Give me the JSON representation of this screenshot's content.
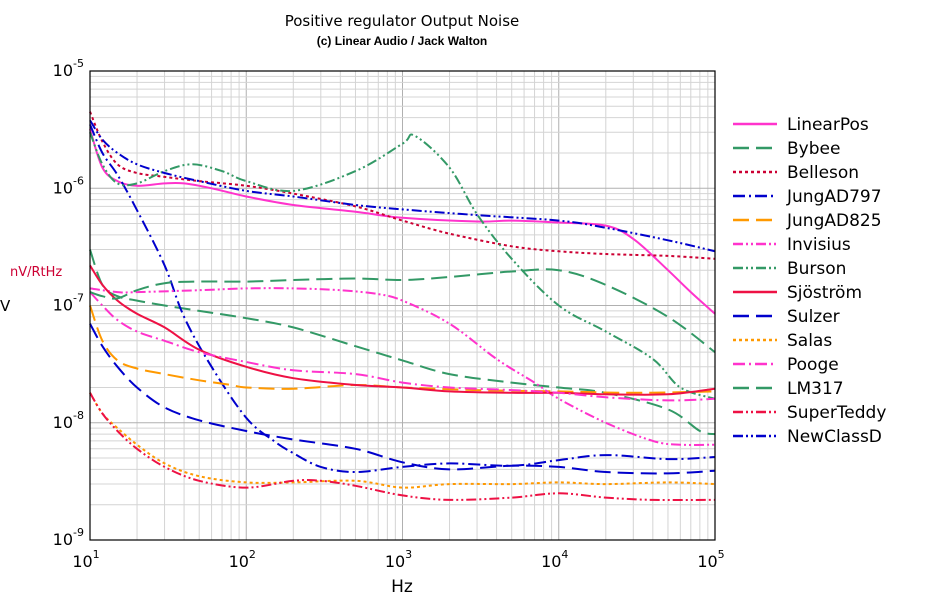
{
  "chart_data": {
    "type": "line",
    "title": "Positive regulator Output Noise",
    "subtitle": "(c) Linear Audio / Jack Walton",
    "xlabel": "Hz",
    "ylabel": "nV/RtHz",
    "ylabel_color": "#cc0033",
    "y_left_char": "V",
    "x_scale": "log",
    "y_scale": "log",
    "xlim": [
      10,
      100000
    ],
    "ylim": [
      1e-09,
      1e-05
    ],
    "x_ticks": [
      {
        "value": 10,
        "base": "10",
        "exp": "1"
      },
      {
        "value": 100,
        "base": "10",
        "exp": "2"
      },
      {
        "value": 1000,
        "base": "10",
        "exp": "3"
      },
      {
        "value": 10000,
        "base": "10",
        "exp": "4"
      },
      {
        "value": 100000,
        "base": "10",
        "exp": "5"
      }
    ],
    "y_ticks": [
      {
        "value": 1e-09,
        "base": "10",
        "exp": "-9"
      },
      {
        "value": 1e-08,
        "base": "10",
        "exp": "-8"
      },
      {
        "value": 1e-07,
        "base": "10",
        "exp": "-7"
      },
      {
        "value": 1e-06,
        "base": "10",
        "exp": "-6"
      },
      {
        "value": 1e-05,
        "base": "10",
        "exp": "-5"
      }
    ],
    "grid": true,
    "legend_position": "right",
    "series": [
      {
        "name": "LinearPos",
        "color": "#ff33cc",
        "dash": "solid",
        "points": [
          [
            10,
            3.2e-06
          ],
          [
            12,
            1.5e-06
          ],
          [
            15,
            1.15e-06
          ],
          [
            20,
            1.05e-06
          ],
          [
            30,
            1.1e-06
          ],
          [
            40,
            1.1e-06
          ],
          [
            60,
            1e-06
          ],
          [
            100,
            8.5e-07
          ],
          [
            200,
            7.2e-07
          ],
          [
            500,
            6.3e-07
          ],
          [
            1000,
            5.6e-07
          ],
          [
            3000,
            5.2e-07
          ],
          [
            5000,
            5.3e-07
          ],
          [
            10000,
            5.1e-07
          ],
          [
            20000,
            4.8e-07
          ],
          [
            30000,
            3.7e-07
          ],
          [
            50000,
            2e-07
          ],
          [
            70000,
            1.3e-07
          ],
          [
            100000,
            8.5e-08
          ]
        ]
      },
      {
        "name": "Bybee",
        "color": "#339966",
        "dash": "long",
        "points": [
          [
            10,
            3e-07
          ],
          [
            12,
            1.5e-07
          ],
          [
            15,
            1.2e-07
          ],
          [
            20,
            1.1e-07
          ],
          [
            30,
            1e-07
          ],
          [
            50,
            9e-08
          ],
          [
            100,
            7.8e-08
          ],
          [
            200,
            6.5e-08
          ],
          [
            500,
            4.5e-08
          ],
          [
            1000,
            3.4e-08
          ],
          [
            2000,
            2.6e-08
          ],
          [
            5000,
            2.2e-08
          ],
          [
            10000,
            2e-08
          ],
          [
            20000,
            1.8e-08
          ],
          [
            50000,
            1.3e-08
          ],
          [
            80000,
            8.5e-09
          ],
          [
            100000,
            8e-09
          ]
        ]
      },
      {
        "name": "Belleson",
        "color": "#cc0033",
        "dash": "dot",
        "points": [
          [
            10,
            4.5e-06
          ],
          [
            12,
            2.5e-06
          ],
          [
            15,
            1.6e-06
          ],
          [
            20,
            1.35e-06
          ],
          [
            30,
            1.25e-06
          ],
          [
            50,
            1.15e-06
          ],
          [
            100,
            1.05e-06
          ],
          [
            200,
            9e-07
          ],
          [
            500,
            7e-07
          ],
          [
            1000,
            5.3e-07
          ],
          [
            2000,
            4.1e-07
          ],
          [
            5000,
            3.2e-07
          ],
          [
            10000,
            2.9e-07
          ],
          [
            20000,
            2.75e-07
          ],
          [
            50000,
            2.65e-07
          ],
          [
            100000,
            2.5e-07
          ]
        ]
      },
      {
        "name": "JungAD797",
        "color": "#0000cc",
        "dash": "dashdot",
        "points": [
          [
            10,
            3.5e-06
          ],
          [
            12,
            2e-06
          ],
          [
            15,
            1.3e-06
          ],
          [
            20,
            6.5e-07
          ],
          [
            30,
            2.2e-07
          ],
          [
            40,
            8e-08
          ],
          [
            60,
            3e-08
          ],
          [
            100,
            1.1e-08
          ],
          [
            150,
            7e-09
          ],
          [
            200,
            5.5e-09
          ],
          [
            300,
            4.2e-09
          ],
          [
            500,
            3.8e-09
          ],
          [
            1000,
            4.2e-09
          ],
          [
            2000,
            4.5e-09
          ],
          [
            5000,
            4.3e-09
          ],
          [
            10000,
            4.8e-09
          ],
          [
            20000,
            5.3e-09
          ],
          [
            50000,
            4.9e-09
          ],
          [
            100000,
            5.1e-09
          ]
        ]
      },
      {
        "name": "JungAD825",
        "color": "#ff9900",
        "dash": "long",
        "points": [
          [
            10,
            1e-07
          ],
          [
            12,
            5e-08
          ],
          [
            15,
            3.4e-08
          ],
          [
            20,
            2.9e-08
          ],
          [
            30,
            2.6e-08
          ],
          [
            50,
            2.3e-08
          ],
          [
            80,
            2.1e-08
          ],
          [
            100,
            2e-08
          ],
          [
            200,
            1.95e-08
          ],
          [
            500,
            2.1e-08
          ],
          [
            1000,
            2e-08
          ],
          [
            3000,
            1.9e-08
          ],
          [
            10000,
            1.85e-08
          ],
          [
            30000,
            1.8e-08
          ],
          [
            100000,
            1.85e-08
          ]
        ]
      },
      {
        "name": "Invisius",
        "color": "#ff33cc",
        "dash": "dashdotdot",
        "points": [
          [
            10,
            1.4e-07
          ],
          [
            15,
            1.3e-07
          ],
          [
            20,
            1.3e-07
          ],
          [
            50,
            1.35e-07
          ],
          [
            100,
            1.4e-07
          ],
          [
            200,
            1.4e-07
          ],
          [
            400,
            1.35e-07
          ],
          [
            700,
            1.25e-07
          ],
          [
            1000,
            1.1e-07
          ],
          [
            2000,
            7e-08
          ],
          [
            4000,
            3.5e-08
          ],
          [
            7000,
            2.2e-08
          ],
          [
            10000,
            1.6e-08
          ],
          [
            20000,
            1e-08
          ],
          [
            40000,
            7e-09
          ],
          [
            60000,
            6.5e-09
          ],
          [
            100000,
            6.5e-09
          ]
        ]
      },
      {
        "name": "Burson",
        "color": "#339966",
        "dash": "dashdotdot",
        "points": [
          [
            10,
            3e-06
          ],
          [
            12,
            1.6e-06
          ],
          [
            15,
            1.1e-06
          ],
          [
            20,
            1.1e-06
          ],
          [
            30,
            1.4e-06
          ],
          [
            45,
            1.6e-06
          ],
          [
            70,
            1.4e-06
          ],
          [
            100,
            1.15e-06
          ],
          [
            200,
            9.5e-07
          ],
          [
            500,
            1.4e-06
          ],
          [
            1000,
            2.4e-06
          ],
          [
            1200,
            2.8e-06
          ],
          [
            2000,
            1.5e-06
          ],
          [
            3000,
            6e-07
          ],
          [
            5000,
            2.5e-07
          ],
          [
            10000,
            1e-07
          ],
          [
            20000,
            6e-08
          ],
          [
            40000,
            3.5e-08
          ],
          [
            60000,
            2e-08
          ],
          [
            100000,
            1.6e-08
          ]
        ]
      },
      {
        "name": "Sjöström",
        "color": "#ee1144",
        "dash": "solid",
        "points": [
          [
            10,
            2.2e-07
          ],
          [
            12,
            1.5e-07
          ],
          [
            15,
            1.1e-07
          ],
          [
            20,
            8.5e-08
          ],
          [
            30,
            6.5e-08
          ],
          [
            50,
            4.2e-08
          ],
          [
            100,
            3e-08
          ],
          [
            200,
            2.4e-08
          ],
          [
            500,
            2.1e-08
          ],
          [
            1000,
            2e-08
          ],
          [
            2000,
            1.85e-08
          ],
          [
            5000,
            1.8e-08
          ],
          [
            10000,
            1.8e-08
          ],
          [
            20000,
            1.75e-08
          ],
          [
            50000,
            1.75e-08
          ],
          [
            100000,
            1.95e-08
          ]
        ]
      },
      {
        "name": "Sulzer",
        "color": "#0000cc",
        "dash": "long",
        "points": [
          [
            10,
            7e-08
          ],
          [
            12,
            4.5e-08
          ],
          [
            15,
            3e-08
          ],
          [
            20,
            2e-08
          ],
          [
            30,
            1.35e-08
          ],
          [
            50,
            1.05e-08
          ],
          [
            100,
            8.5e-09
          ],
          [
            200,
            7.2e-09
          ],
          [
            500,
            6e-09
          ],
          [
            1000,
            4.6e-09
          ],
          [
            2000,
            4e-09
          ],
          [
            5000,
            4.3e-09
          ],
          [
            10000,
            4.2e-09
          ],
          [
            20000,
            3.8e-09
          ],
          [
            50000,
            3.7e-09
          ],
          [
            100000,
            3.9e-09
          ]
        ]
      },
      {
        "name": "Salas",
        "color": "#ff9900",
        "dash": "dot",
        "points": [
          [
            10,
            1.8e-08
          ],
          [
            12,
            1.2e-08
          ],
          [
            15,
            9e-09
          ],
          [
            20,
            6.5e-09
          ],
          [
            30,
            4.5e-09
          ],
          [
            50,
            3.5e-09
          ],
          [
            100,
            3.1e-09
          ],
          [
            200,
            3.1e-09
          ],
          [
            500,
            3.2e-09
          ],
          [
            1000,
            2.8e-09
          ],
          [
            2000,
            3e-09
          ],
          [
            5000,
            3e-09
          ],
          [
            10000,
            3.1e-09
          ],
          [
            20000,
            3e-09
          ],
          [
            50000,
            3.1e-09
          ],
          [
            100000,
            3e-09
          ]
        ]
      },
      {
        "name": "Pooge",
        "color": "#ff33cc",
        "dash": "dashdot",
        "points": [
          [
            10,
            1.3e-07
          ],
          [
            12,
            1e-07
          ],
          [
            15,
            7.5e-08
          ],
          [
            20,
            6e-08
          ],
          [
            30,
            5e-08
          ],
          [
            50,
            4e-08
          ],
          [
            100,
            3.3e-08
          ],
          [
            200,
            2.8e-08
          ],
          [
            500,
            2.6e-08
          ],
          [
            1000,
            2.2e-08
          ],
          [
            2000,
            2e-08
          ],
          [
            5000,
            1.9e-08
          ],
          [
            10000,
            1.8e-08
          ],
          [
            20000,
            1.65e-08
          ],
          [
            50000,
            1.55e-08
          ],
          [
            100000,
            1.6e-08
          ]
        ]
      },
      {
        "name": "LM317",
        "color": "#339966",
        "dash": "long",
        "points": [
          [
            10,
            1.3e-07
          ],
          [
            12,
            1.2e-07
          ],
          [
            15,
            1.15e-07
          ],
          [
            20,
            1.35e-07
          ],
          [
            30,
            1.55e-07
          ],
          [
            50,
            1.6e-07
          ],
          [
            100,
            1.6e-07
          ],
          [
            200,
            1.65e-07
          ],
          [
            500,
            1.7e-07
          ],
          [
            1000,
            1.65e-07
          ],
          [
            2000,
            1.75e-07
          ],
          [
            5000,
            1.95e-07
          ],
          [
            10000,
            2e-07
          ],
          [
            20000,
            1.5e-07
          ],
          [
            50000,
            8e-08
          ],
          [
            100000,
            4e-08
          ]
        ]
      },
      {
        "name": "SuperTeddy",
        "color": "#ee1144",
        "dash": "dashdotdot",
        "points": [
          [
            10,
            1.8e-08
          ],
          [
            12,
            1.2e-08
          ],
          [
            15,
            8.5e-09
          ],
          [
            20,
            6e-09
          ],
          [
            30,
            4.2e-09
          ],
          [
            50,
            3.2e-09
          ],
          [
            100,
            2.8e-09
          ],
          [
            200,
            3.2e-09
          ],
          [
            300,
            3.2e-09
          ],
          [
            500,
            2.9e-09
          ],
          [
            1000,
            2.4e-09
          ],
          [
            2000,
            2.2e-09
          ],
          [
            5000,
            2.3e-09
          ],
          [
            10000,
            2.5e-09
          ],
          [
            20000,
            2.3e-09
          ],
          [
            40000,
            2.2e-09
          ],
          [
            100000,
            2.2e-09
          ]
        ]
      },
      {
        "name": "NewClassD",
        "color": "#0000cc",
        "dash": "dashdotdot",
        "points": [
          [
            10,
            3.8e-06
          ],
          [
            12,
            2.6e-06
          ],
          [
            15,
            2e-06
          ],
          [
            20,
            1.6e-06
          ],
          [
            30,
            1.35e-06
          ],
          [
            50,
            1.15e-06
          ],
          [
            100,
            9.5e-07
          ],
          [
            200,
            8.5e-07
          ],
          [
            500,
            7.2e-07
          ],
          [
            1000,
            6.6e-07
          ],
          [
            3000,
            5.9e-07
          ],
          [
            10000,
            5.3e-07
          ],
          [
            20000,
            4.6e-07
          ],
          [
            50000,
            3.6e-07
          ],
          [
            100000,
            2.9e-07
          ]
        ]
      }
    ]
  }
}
